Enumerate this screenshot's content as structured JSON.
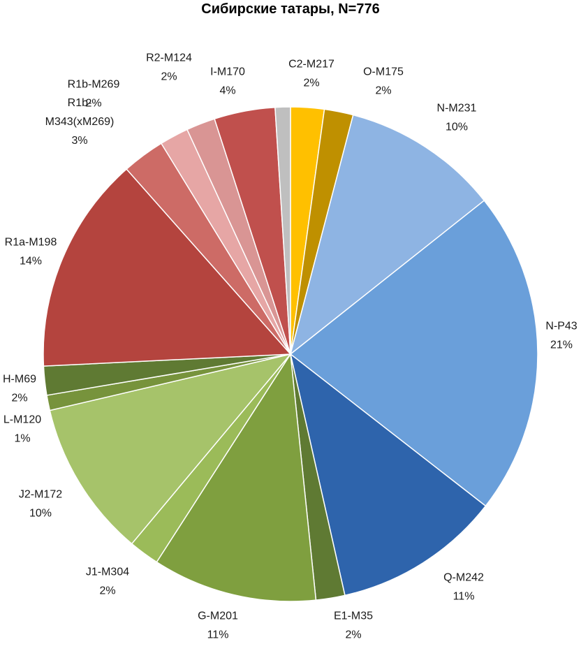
{
  "chart_data": {
    "type": "pie",
    "title": "Сибирские татары, N=776",
    "slices": [
      {
        "label": "C2-M217",
        "percent_label": "2%",
        "value": 2.2,
        "color": "#FFC000"
      },
      {
        "label": "O-M175",
        "percent_label": "2%",
        "value": 1.9,
        "color": "#BF9000"
      },
      {
        "label": "N-M231",
        "percent_label": "10%",
        "value": 10.3,
        "color": "#8EB4E3"
      },
      {
        "label": "N-P43",
        "percent_label": "21%",
        "value": 21.3,
        "color": "#6A9FDA"
      },
      {
        "label": "Q-M242",
        "percent_label": "11%",
        "value": 11.0,
        "color": "#2E64AC"
      },
      {
        "label": "E1-M35",
        "percent_label": "2%",
        "value": 1.9,
        "color": "#5F7A33"
      },
      {
        "label": "G-M201",
        "percent_label": "11%",
        "value": 10.8,
        "color": "#7F9F3F"
      },
      {
        "label": "J1-M304",
        "percent_label": "2%",
        "value": 2.0,
        "color": "#9BBB59"
      },
      {
        "label": "J2-M172",
        "percent_label": "10%",
        "value": 10.3,
        "color": "#A6C36A"
      },
      {
        "label": "L-M120",
        "percent_label": "1%",
        "value": 1.0,
        "color": "#77933C"
      },
      {
        "label": "H-M69",
        "percent_label": "2%",
        "value": 1.9,
        "color": "#5F7A33"
      },
      {
        "label": "R1a-M198",
        "percent_label": "14%",
        "value": 14.3,
        "color": "#B4443E"
      },
      {
        "label": "R1b-M343(xM269)",
        "percent_label": "3%",
        "value": 2.8,
        "color": "#CD6B66"
      },
      {
        "label": "R1b-M269",
        "percent_label": "2%",
        "value": 1.9,
        "color": "#E6A6A5"
      },
      {
        "label": "R2-M124",
        "percent_label": "2%",
        "value": 1.9,
        "color": "#D99594"
      },
      {
        "label": "I-M170",
        "percent_label": "4%",
        "value": 4.0,
        "color": "#C0504D"
      },
      {
        "label": "",
        "percent_label": "",
        "value": 1.0,
        "color": "#BFBFBF"
      }
    ],
    "legend": "none"
  }
}
